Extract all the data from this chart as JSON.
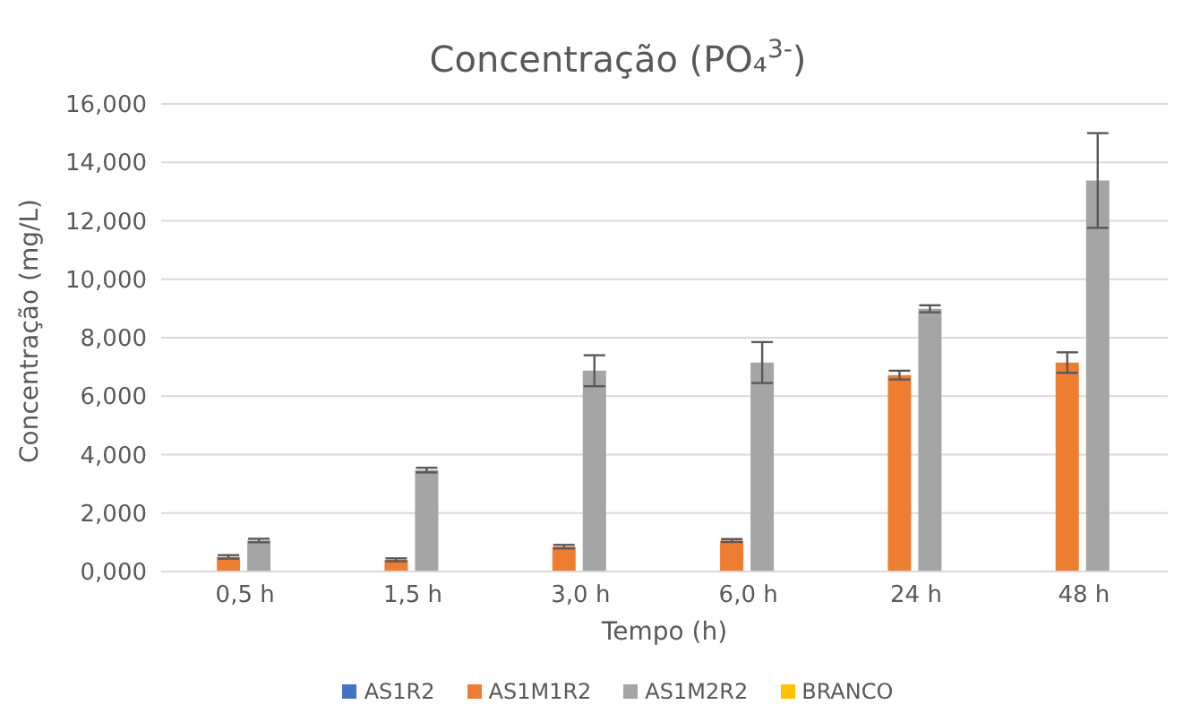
{
  "chart_data": {
    "type": "bar",
    "title": "Concentração (PO₄$^{3-}$)",
    "xlabel": "Tempo (h)",
    "ylabel": "Concentração (mg/L)",
    "categories": [
      "0,5 h",
      "1,5 h",
      "3,0 h",
      "6,0 h",
      "24 h",
      "48 h"
    ],
    "series": [
      {
        "name": "AS1R2",
        "color": "#4472c4",
        "values": [
          0,
          0,
          0,
          0,
          0,
          0
        ]
      },
      {
        "name": "AS1M1R2",
        "color": "#ed7d31",
        "values": [
          0.5,
          0.4,
          0.85,
          1.06,
          6.72,
          7.15
        ],
        "errors": [
          0.06,
          0.05,
          0.06,
          0.05,
          0.15,
          0.35
        ]
      },
      {
        "name": "AS1M2R2",
        "color": "#a5a5a5",
        "values": [
          1.06,
          3.47,
          6.87,
          7.15,
          8.99,
          13.38
        ],
        "errors": [
          0.06,
          0.08,
          0.53,
          0.7,
          0.12,
          1.62
        ]
      },
      {
        "name": "BRANCO",
        "color": "#ffc000",
        "values": [
          0,
          0,
          0,
          0,
          0,
          0
        ]
      }
    ],
    "ylim": [
      0,
      16
    ],
    "yticks": [
      {
        "value": 0,
        "label": "0,000"
      },
      {
        "value": 2,
        "label": "2,000"
      },
      {
        "value": 4,
        "label": "4,000"
      },
      {
        "value": 6,
        "label": "6,000"
      },
      {
        "value": 8,
        "label": "8,000"
      },
      {
        "value": 10,
        "label": "10,000"
      },
      {
        "value": 12,
        "label": "12,000"
      },
      {
        "value": 14,
        "label": "14,000"
      },
      {
        "value": 16,
        "label": "16,000"
      }
    ],
    "grid": "y",
    "legend": "bottom"
  }
}
